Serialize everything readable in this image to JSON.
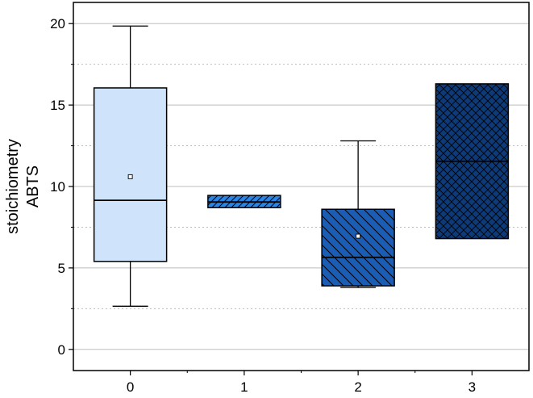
{
  "chart_data": {
    "type": "box",
    "title": "",
    "xlabel": "",
    "ylabel": [
      "stoichiometry",
      "ABTS"
    ],
    "ylim": [
      -1.3,
      21.3
    ],
    "y_ticks": [
      0,
      5,
      10,
      15,
      20
    ],
    "y_tick_labels": [
      "0",
      "5",
      "10",
      "15",
      "20"
    ],
    "y_minor_gridlines": [
      2.5,
      7.5,
      12.5,
      17.5
    ],
    "grid": "horizontal",
    "legend": "none",
    "categories": [
      "0",
      "1",
      "2",
      "3"
    ],
    "boxes": [
      {
        "category": "0",
        "whisker_low": 2.65,
        "q1": 5.4,
        "median": 9.15,
        "q3": 16.05,
        "whisker_high": 19.85,
        "mean": 10.6,
        "fill": "#cfe4fb",
        "pattern": "none"
      },
      {
        "category": "1",
        "whisker_low": 8.7,
        "q1": 8.7,
        "median": 9.05,
        "q3": 9.45,
        "whisker_high": 9.45,
        "mean": null,
        "fill": "#2a86e6",
        "pattern": "forward-diagonal"
      },
      {
        "category": "2",
        "whisker_low": 3.8,
        "q1": 3.9,
        "median": 5.65,
        "q3": 8.6,
        "whisker_high": 12.8,
        "mean": 6.95,
        "fill": "#1b5cb5",
        "pattern": "backward-diagonal"
      },
      {
        "category": "3",
        "whisker_low": 6.8,
        "q1": 6.8,
        "median": 11.55,
        "q3": 16.3,
        "whisker_high": 16.3,
        "mean": null,
        "fill": "#0d3a78",
        "pattern": "crosshatch"
      }
    ],
    "colors": {
      "outline": "#000000",
      "major_grid": "#bdbdbd",
      "minor_grid": "#bdbdbd"
    }
  }
}
